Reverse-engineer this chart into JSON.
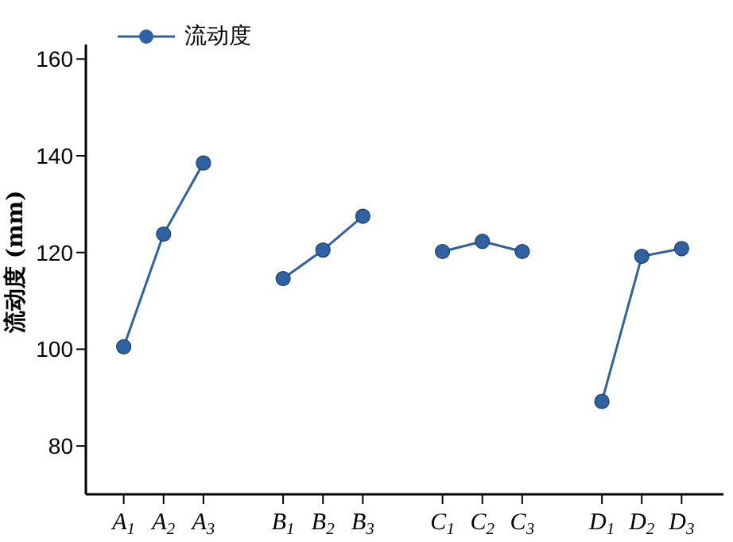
{
  "chart_data": {
    "type": "line",
    "ylabel": "流动度 (mm)",
    "categories": [
      "A$_{1}$",
      "A$_{2}$",
      "A$_{3}$",
      null,
      "B$_{1}$",
      "B$_{2}$",
      "B$_{3}$",
      null,
      "C$_{1}$",
      "C$_{2}$",
      "C$_{3}$",
      null,
      "D$_{1}$",
      "D$_{2}$",
      "D$_{3}$"
    ],
    "series": [
      {
        "name": "流动度",
        "color": "#2f62a3",
        "values": [
          100.5,
          123.8,
          138.5,
          null,
          114.6,
          120.5,
          127.5,
          null,
          120.2,
          122.3,
          120.2,
          null,
          89.2,
          119.2,
          120.8
        ]
      }
    ],
    "ylim": [
      70,
      163
    ],
    "yticks": [
      80,
      100,
      120,
      140,
      160
    ],
    "grid": false,
    "legend": "top left",
    "marker": "circle",
    "line_style": "solid"
  }
}
